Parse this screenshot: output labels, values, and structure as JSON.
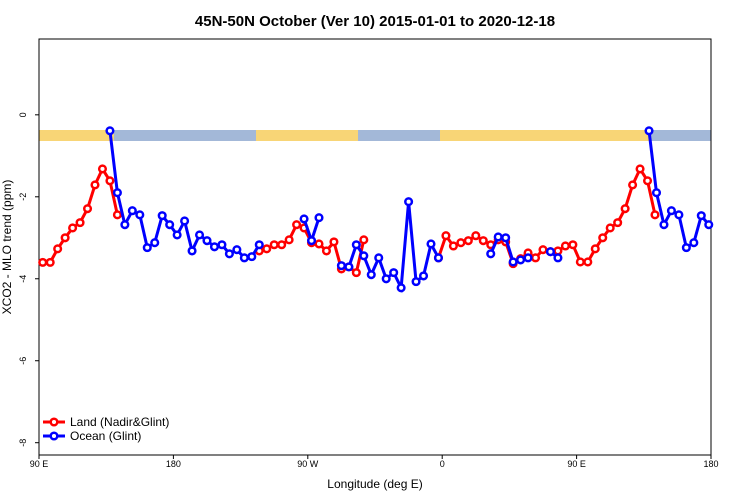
{
  "chart_data": {
    "type": "line",
    "title": "45N-50N October (Ver 10)   2015-01-01 to 2020-12-18",
    "xlabel": "Longitude (deg E)",
    "ylabel": "XCO2 - MLO trend (ppm)",
    "xlim": [
      90,
      540
    ],
    "ylim": [
      -8.3,
      1.85
    ],
    "xticks": [
      {
        "value": 90,
        "label": "90 E"
      },
      180,
      {
        "value": 270,
        "label": "90 W"
      },
      {
        "value": 360,
        "label": "0"
      },
      {
        "value": 450,
        "label": "90 E"
      },
      {
        "value": 540,
        "label": "180"
      }
    ],
    "yticks": [
      -8,
      -6,
      -4,
      -2,
      0
    ],
    "legend": "lower left",
    "series": [
      {
        "name": "Land (Nadir&Glint)",
        "color": "#ff0000",
        "x": [
          92.5,
          97.5,
          102.5,
          107.5,
          112.5,
          117.5,
          122.5,
          127.5,
          132.5,
          137.5,
          142.5,
          147.5,
          237.5,
          242.5,
          247.5,
          252.5,
          257.5,
          262.5,
          267.5,
          272.5,
          277.5,
          282.5,
          287.5,
          292.5,
          297.5,
          302.5,
          307.5,
          312.5,
          357.5,
          362.5,
          367.5,
          372.5,
          377.5,
          382.5,
          387.5,
          392.5,
          397.5,
          402.5,
          407.5,
          412.5,
          417.5,
          422.5,
          427.5,
          432.5,
          437.5,
          442.5,
          447.5,
          452.5,
          457.5,
          462.5,
          467.5,
          472.5,
          477.5,
          482.5,
          487.5,
          492.5,
          497.5,
          502.5
        ],
        "values": [
          -3.6,
          -3.6,
          -3.27,
          -3.0,
          -2.76,
          -2.63,
          -2.29,
          -1.71,
          -1.32,
          -1.61,
          -2.44,
          null,
          -3.32,
          -3.27,
          -3.17,
          -3.17,
          -3.05,
          -2.68,
          -2.76,
          -3.12,
          -3.15,
          -3.32,
          -3.1,
          -3.76,
          -3.71,
          -3.85,
          -3.05,
          null,
          -3.49,
          -2.95,
          -3.2,
          -3.12,
          -3.07,
          -2.95,
          -3.07,
          -3.17,
          -3.05,
          -3.1,
          -3.63,
          -3.51,
          -3.37,
          -3.49,
          -3.29,
          -3.34,
          -3.32,
          -3.2,
          -3.17,
          -3.59,
          -3.59,
          -3.27,
          -3.0,
          -2.76,
          -2.63,
          -2.29,
          -1.71,
          -1.32,
          -1.61,
          -2.44
        ]
      },
      {
        "name": "Ocean (Glint)",
        "color": "#0000ff",
        "x": [
          137.5,
          142.5,
          147.5,
          152.5,
          157.5,
          162.5,
          167.5,
          172.5,
          177.5,
          182.5,
          187.5,
          192.5,
          197.5,
          202.5,
          207.5,
          212.5,
          217.5,
          222.5,
          227.5,
          232.5,
          237.5,
          242.5,
          267.5,
          272.5,
          277.5,
          282.5,
          292.5,
          297.5,
          302.5,
          307.5,
          312.5,
          317.5,
          322.5,
          327.5,
          332.5,
          337.5,
          342.5,
          347.5,
          352.5,
          357.5,
          362.5,
          392.5,
          397.5,
          402.5,
          407.5,
          412.5,
          417.5,
          422.5,
          432.5,
          437.5,
          442.5,
          498.5,
          503.5,
          508.5,
          513.5,
          518.5,
          523.5,
          528.5,
          533.5,
          538.5
        ],
        "values": [
          -0.39,
          -1.9,
          -2.68,
          -2.34,
          -2.44,
          -3.24,
          -3.12,
          -2.46,
          -2.68,
          -2.93,
          -2.59,
          -3.32,
          -2.93,
          -3.07,
          -3.22,
          -3.17,
          -3.39,
          -3.29,
          -3.49,
          -3.46,
          -3.17,
          null,
          -2.54,
          -3.07,
          -2.51,
          null,
          -3.68,
          -3.71,
          -3.17,
          -3.44,
          -3.9,
          -3.49,
          -4.0,
          -3.85,
          -4.22,
          -2.12,
          -4.07,
          -3.93,
          -3.15,
          -3.49,
          null,
          -3.39,
          -2.98,
          -3.0,
          -3.59,
          -3.54,
          -3.49,
          null,
          -3.34,
          -3.49,
          null,
          -0.39,
          -1.9,
          -2.68,
          -2.34,
          -2.44,
          -3.24,
          -3.12,
          -2.46,
          -2.68
        ]
      }
    ]
  }
}
